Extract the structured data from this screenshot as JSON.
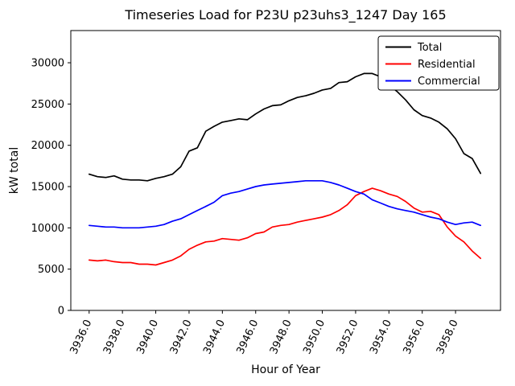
{
  "chart_data": {
    "type": "line",
    "title": "Timeseries Load for P23U p23uhs3_1247  Day 165",
    "xlabel": "Hour of Year",
    "ylabel": "kW total",
    "xlim": [
      3934.9,
      3960.7
    ],
    "ylim": [
      0,
      33900
    ],
    "grid": false,
    "legend_position": "upper right",
    "xticks": [
      3936,
      3938,
      3940,
      3942,
      3944,
      3946,
      3948,
      3950,
      3952,
      3954,
      3956,
      3958
    ],
    "xtick_labels": [
      "3936.0",
      "3938.0",
      "3940.0",
      "3942.0",
      "3944.0",
      "3946.0",
      "3948.0",
      "3950.0",
      "3952.0",
      "3954.0",
      "3956.0",
      "3958.0"
    ],
    "yticks": [
      0,
      5000,
      10000,
      15000,
      20000,
      25000,
      30000
    ],
    "ytick_labels": [
      "0",
      "5000",
      "10000",
      "15000",
      "20000",
      "25000",
      "30000"
    ],
    "x": [
      3936.0,
      3936.5,
      3937.0,
      3937.5,
      3938.0,
      3938.5,
      3939.0,
      3939.5,
      3940.0,
      3940.5,
      3941.0,
      3941.5,
      3942.0,
      3942.5,
      3943.0,
      3943.5,
      3944.0,
      3944.5,
      3945.0,
      3945.5,
      3946.0,
      3946.5,
      3947.0,
      3947.5,
      3948.0,
      3948.5,
      3949.0,
      3949.5,
      3950.0,
      3950.5,
      3951.0,
      3951.5,
      3952.0,
      3952.5,
      3953.0,
      3953.5,
      3954.0,
      3954.5,
      3955.0,
      3955.5,
      3956.0,
      3956.5,
      3957.0,
      3957.5,
      3958.0,
      3958.5,
      3959.0,
      3959.5
    ],
    "series": [
      {
        "name": "Total",
        "color": "#000000",
        "values": [
          16500,
          16200,
          16100,
          16300,
          15900,
          15800,
          15800,
          15700,
          16000,
          16200,
          16500,
          17400,
          19300,
          19700,
          21700,
          22300,
          22800,
          23000,
          23200,
          23100,
          23800,
          24400,
          24800,
          24900,
          25400,
          25800,
          26000,
          26300,
          26700,
          26900,
          27600,
          27700,
          28300,
          28700,
          28700,
          28300,
          27300,
          26500,
          25500,
          24300,
          23600,
          23300,
          22800,
          22000,
          20800,
          19000,
          18400,
          16600
        ]
      },
      {
        "name": "Residential",
        "color": "#ff0000",
        "values": [
          6100,
          6000,
          6100,
          5900,
          5800,
          5800,
          5600,
          5600,
          5500,
          5800,
          6100,
          6600,
          7400,
          7900,
          8300,
          8400,
          8700,
          8600,
          8500,
          8800,
          9300,
          9500,
          10100,
          10300,
          10400,
          10700,
          10900,
          11100,
          11300,
          11600,
          12100,
          12800,
          13900,
          14400,
          14800,
          14500,
          14100,
          13800,
          13200,
          12400,
          11900,
          12000,
          11600,
          10100,
          9000,
          8300,
          7200,
          6300
        ]
      },
      {
        "name": "Commercial",
        "color": "#0000ff",
        "values": [
          10300,
          10200,
          10100,
          10100,
          10000,
          10000,
          10000,
          10100,
          10200,
          10400,
          10800,
          11100,
          11600,
          12100,
          12600,
          13100,
          13900,
          14200,
          14400,
          14700,
          15000,
          15200,
          15300,
          15400,
          15500,
          15600,
          15700,
          15700,
          15700,
          15500,
          15200,
          14800,
          14400,
          14100,
          13400,
          13000,
          12600,
          12300,
          12100,
          11900,
          11600,
          11300,
          11100,
          10700,
          10400,
          10600,
          10700,
          10300
        ]
      }
    ]
  }
}
